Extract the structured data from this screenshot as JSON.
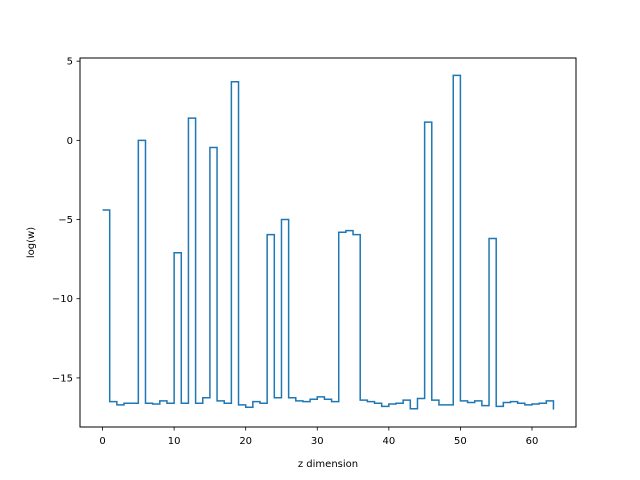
{
  "chart_data": {
    "type": "line",
    "drawstyle": "steps-post",
    "title": "",
    "xlabel": "z dimension",
    "ylabel": "log(w)",
    "xlim": [
      -3.15,
      66.15
    ],
    "ylim": [
      -18.1,
      5.2
    ],
    "x_ticks": [
      0,
      10,
      20,
      30,
      40,
      50,
      60
    ],
    "y_ticks": [
      5,
      0,
      -5,
      -10,
      -15
    ],
    "grid": false,
    "legend": "none",
    "series_color": "#1f77b4",
    "x": [
      0,
      1,
      2,
      3,
      4,
      5,
      6,
      7,
      8,
      9,
      10,
      11,
      12,
      13,
      14,
      15,
      16,
      17,
      18,
      19,
      20,
      21,
      22,
      23,
      24,
      25,
      26,
      27,
      28,
      29,
      30,
      31,
      32,
      33,
      34,
      35,
      36,
      37,
      38,
      39,
      40,
      41,
      42,
      43,
      44,
      45,
      46,
      47,
      48,
      49,
      50,
      51,
      52,
      53,
      54,
      55,
      56,
      57,
      58,
      59,
      60,
      61,
      62,
      63
    ],
    "series": [
      {
        "values": [
          -4.4,
          -16.5,
          -16.7,
          -16.6,
          -16.6,
          0.0,
          -16.6,
          -16.65,
          -16.45,
          -16.6,
          -7.1,
          -16.6,
          1.4,
          -16.6,
          -16.25,
          -0.45,
          -16.45,
          -16.6,
          3.7,
          -16.7,
          -16.85,
          -16.5,
          -16.6,
          -5.95,
          -16.25,
          -5.0,
          -16.25,
          -16.45,
          -16.5,
          -16.35,
          -16.2,
          -16.35,
          -16.5,
          -5.8,
          -5.7,
          -5.95,
          -16.4,
          -16.5,
          -16.6,
          -16.8,
          -16.65,
          -16.6,
          -16.4,
          -16.95,
          -16.3,
          1.15,
          -16.4,
          -16.7,
          -16.7,
          4.1,
          -16.45,
          -16.55,
          -16.45,
          -16.75,
          -6.2,
          -16.8,
          -16.55,
          -16.5,
          -16.6,
          -16.7,
          -16.65,
          -16.6,
          -16.45,
          -17.0
        ]
      }
    ]
  }
}
